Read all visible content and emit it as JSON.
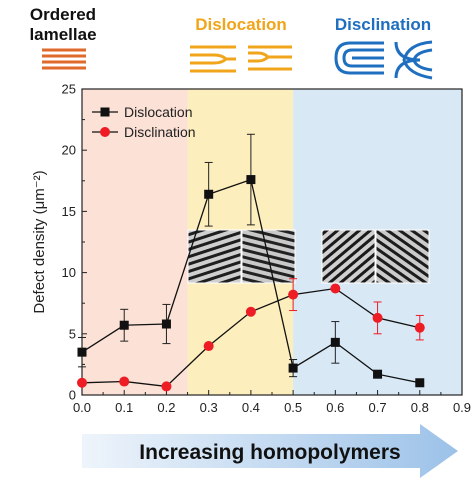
{
  "header": {
    "ordered_line1": "Ordered",
    "ordered_line2": "lamellae",
    "dislocation": "Dislocation",
    "disclination": "Disclination"
  },
  "colors": {
    "ordered": "#e06a2b",
    "dislocation": "#f0a51a",
    "disclination": "#1f6fc0",
    "region_pink": "#fbe1d6",
    "region_yellow": "#fdeebd",
    "region_blue": "#d8e8f5",
    "dislocation_series": "#111111",
    "disclination_series": "#ee1c24"
  },
  "bottom_arrow_label": "Increasing homopolymers",
  "chart_data": {
    "type": "scatter",
    "xlabel": "",
    "ylabel": "Defect density (μm⁻²)",
    "xlim": [
      0,
      0.9
    ],
    "ylim": [
      0,
      25
    ],
    "xticks": [
      "0.0",
      "0.1",
      "0.2",
      "0.3",
      "0.4",
      "0.5",
      "0.6",
      "0.7",
      "0.8",
      "0.9"
    ],
    "yticks": [
      "0",
      "5",
      "10",
      "15",
      "20",
      "25"
    ],
    "regions": [
      {
        "from": 0.0,
        "to": 0.25,
        "color": "#fbe1d6"
      },
      {
        "from": 0.25,
        "to": 0.5,
        "color": "#fdeebd"
      },
      {
        "from": 0.5,
        "to": 0.9,
        "color": "#d8e8f5"
      }
    ],
    "legend_position": "top-left",
    "series": [
      {
        "name": "Dislocation",
        "marker": "square",
        "color": "#111111",
        "x": [
          0.0,
          0.1,
          0.2,
          0.3,
          0.4,
          0.5,
          0.6,
          0.7,
          0.8
        ],
        "y": [
          3.5,
          5.7,
          5.8,
          16.4,
          17.6,
          2.2,
          4.3,
          1.7,
          1.0
        ],
        "err": [
          1.2,
          1.3,
          1.6,
          2.6,
          3.7,
          0.7,
          1.7,
          0.3,
          0.2
        ]
      },
      {
        "name": "Disclination",
        "marker": "circle",
        "color": "#ee1c24",
        "x": [
          0.0,
          0.1,
          0.2,
          0.3,
          0.4,
          0.5,
          0.6,
          0.7,
          0.8
        ],
        "y": [
          1.0,
          1.1,
          0.7,
          4.0,
          6.8,
          8.2,
          8.7,
          6.3,
          5.5
        ],
        "err": [
          0,
          0,
          0,
          0,
          0,
          1.3,
          0,
          1.3,
          1.0
        ]
      }
    ]
  }
}
